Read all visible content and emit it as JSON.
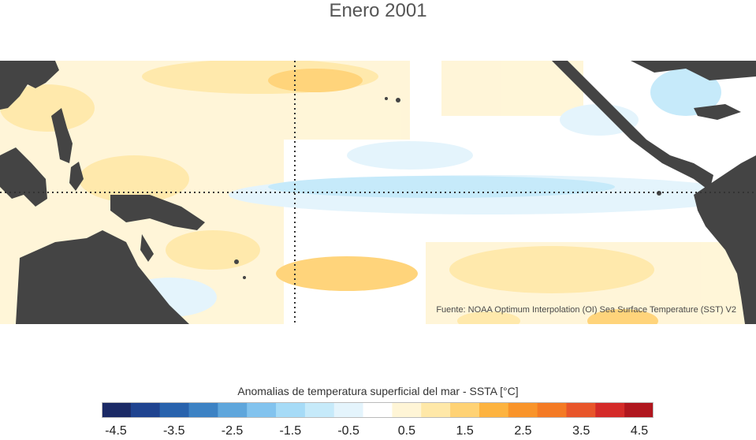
{
  "title": "Enero 2001",
  "source_note": "Fuente: NOAA Optimum Interpolation (OI) Sea Surface Temperature (SST) V2",
  "legend": {
    "title": "Anomalias de temperatura superficial del mar - SSTA  [°C]",
    "colors": [
      "#1b2a66",
      "#1f4390",
      "#2862ad",
      "#3c82c4",
      "#5ea6dc",
      "#82c3ee",
      "#a6dbf7",
      "#c6eafa",
      "#e4f4fc",
      "#ffffff",
      "#fff5d6",
      "#ffe8a8",
      "#ffd274",
      "#fdb33f",
      "#f9942a",
      "#f47a24",
      "#e8552a",
      "#d42a28",
      "#b0161e"
    ],
    "tick_labels": [
      "-4.5",
      "-3.5",
      "-2.5",
      "-1.5",
      "-0.5",
      "0.5",
      "1.5",
      "2.5",
      "3.5",
      "4.5"
    ]
  },
  "map": {
    "land_color": "#444444",
    "ocean_color": "#ffffff",
    "reference_lines": [
      "equator",
      "date line"
    ]
  }
}
